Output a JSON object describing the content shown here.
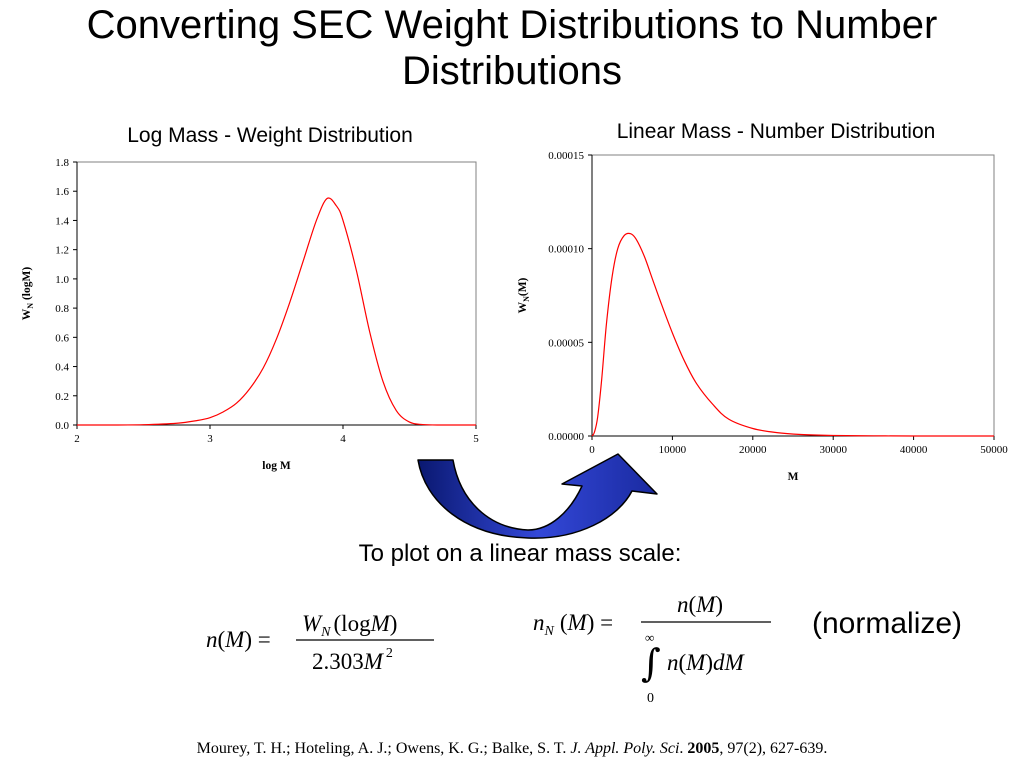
{
  "slide": {
    "title": "Converting SEC Weight Distributions to Number Distributions",
    "caption": "To plot on a linear mass scale:",
    "normalize_note": "(normalize)",
    "reference": {
      "authors": "Mourey, T. H.; Hoteling, A. J.; Owens, K. G.; Balke, S. T. ",
      "journal": "J. Appl. Poly. Sci",
      "sep": ". ",
      "year": "2005",
      "rest": ", 97(2), 627-639."
    }
  },
  "equations": {
    "left": {
      "lhs": "n(M) =",
      "numerator": "W_N(logM)",
      "denominator": "2.303M^2"
    },
    "right": {
      "lhs": "n_N(M) =",
      "numerator": "n(M)",
      "integral_lower": "0",
      "integral_upper": "∞",
      "integrand": "n(M)dM"
    }
  },
  "chart_data": [
    {
      "type": "line",
      "title": "Log Mass - Weight Distribution",
      "xlabel": "log M",
      "ylabel": "W_N (logM)",
      "xlim": [
        2,
        5
      ],
      "ylim": [
        0,
        1.8
      ],
      "xticks": [
        "2",
        "3",
        "4",
        "5"
      ],
      "yticks": [
        "0.0",
        "0.2",
        "0.4",
        "0.6",
        "0.8",
        "1.0",
        "1.2",
        "1.4",
        "1.6",
        "1.8"
      ],
      "grid": false,
      "legend": "none",
      "line_color": "#ff0000",
      "series": [
        {
          "x": [
            2.0,
            2.25,
            2.5,
            2.75,
            2.9,
            3.0,
            3.1,
            3.2,
            3.3,
            3.4,
            3.5,
            3.6,
            3.7,
            3.8,
            3.88,
            3.95,
            4.0,
            4.1,
            4.2,
            4.3,
            4.4,
            4.5,
            4.6,
            4.75,
            5.0
          ],
          "y": [
            0.0,
            0.0,
            0.002,
            0.012,
            0.03,
            0.05,
            0.09,
            0.15,
            0.25,
            0.39,
            0.59,
            0.84,
            1.12,
            1.4,
            1.55,
            1.5,
            1.4,
            1.06,
            0.64,
            0.3,
            0.1,
            0.02,
            0.003,
            0.0,
            0.0
          ]
        }
      ]
    },
    {
      "type": "line",
      "title": "Linear Mass - Number Distribution",
      "xlabel": "M",
      "ylabel": "W_N(M)",
      "xlim": [
        0,
        50000
      ],
      "ylim": [
        0,
        0.00015
      ],
      "xticks": [
        "0",
        "10000",
        "20000",
        "30000",
        "40000",
        "50000"
      ],
      "yticks": [
        "0.00000",
        "0.00005",
        "0.00010",
        "0.00015"
      ],
      "grid": false,
      "legend": "none",
      "line_color": "#ff0000",
      "series": [
        {
          "x": [
            0,
            300,
            700,
            1200,
            1800,
            2500,
            3200,
            4000,
            4800,
            5500,
            6500,
            7500,
            8500,
            10000,
            11500,
            13000,
            15000,
            17000,
            20000,
            23000,
            26000,
            30000,
            35000,
            40000,
            50000
          ],
          "y": [
            0.0,
            2e-06,
            1e-05,
            3e-05,
            6e-05,
            8.5e-05,
            0.0001,
            0.000107,
            0.000108,
            0.000105,
            9.6e-05,
            8.4e-05,
            7.2e-05,
            5.5e-05,
            4e-05,
            2.8e-05,
            1.7e-05,
            9e-06,
            4e-06,
            1.8e-06,
            8e-07,
            3e-07,
            1e-07,
            0.0,
            0.0
          ]
        }
      ]
    }
  ]
}
